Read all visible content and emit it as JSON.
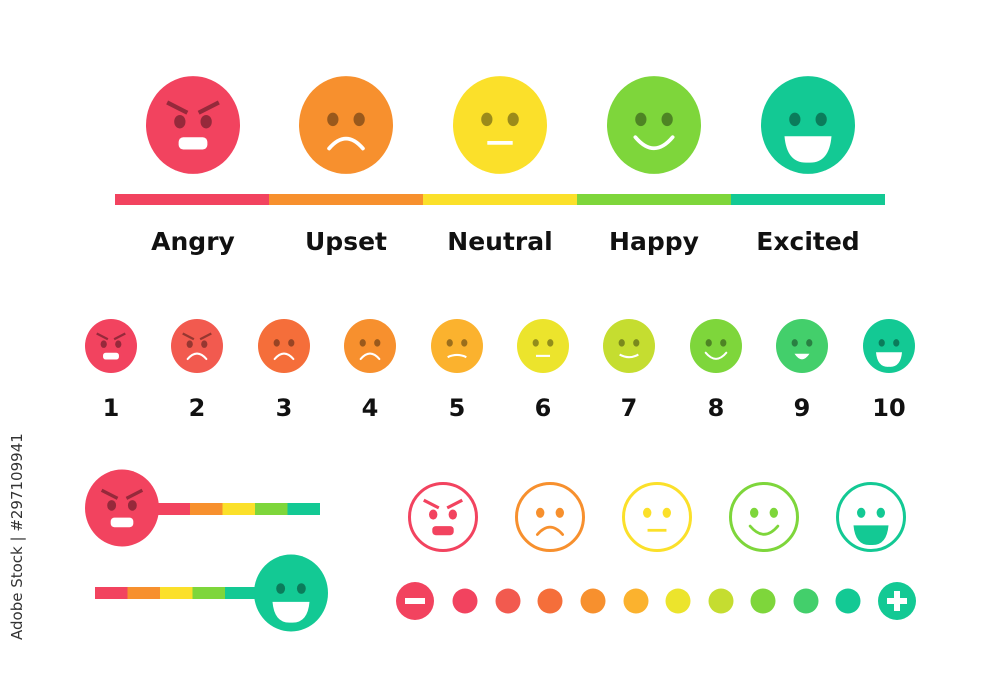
{
  "moods": [
    {
      "label": "Angry",
      "face": "angry",
      "color": "#f2435f"
    },
    {
      "label": "Upset",
      "face": "sad",
      "color": "#f7902e"
    },
    {
      "label": "Neutral",
      "face": "neutral",
      "color": "#fbe02a"
    },
    {
      "label": "Happy",
      "face": "smile",
      "color": "#7ed63b"
    },
    {
      "label": "Excited",
      "face": "grin",
      "color": "#13c994"
    }
  ],
  "scale": [
    {
      "label": "1",
      "face": "angry",
      "color": "#f2435f"
    },
    {
      "label": "2",
      "face": "angry-sad",
      "color": "#f25a4f"
    },
    {
      "label": "3",
      "face": "sad",
      "color": "#f56e3a"
    },
    {
      "label": "4",
      "face": "sad",
      "color": "#f7902e"
    },
    {
      "label": "5",
      "face": "slight-sad",
      "color": "#fbb22e"
    },
    {
      "label": "6",
      "face": "neutral",
      "color": "#ece42c"
    },
    {
      "label": "7",
      "face": "slight-smile",
      "color": "#c5dd30"
    },
    {
      "label": "8",
      "face": "smile",
      "color": "#7ed63b"
    },
    {
      "label": "9",
      "face": "small-grin",
      "color": "#43cf6b"
    },
    {
      "label": "10",
      "face": "grin",
      "color": "#13c994"
    }
  ],
  "sliders": [
    {
      "face": "angry",
      "level": "minimum"
    },
    {
      "face": "grin",
      "level": "maximum"
    }
  ],
  "dots": [
    "#f2435f",
    "#f25a4f",
    "#f56e3a",
    "#f7902e",
    "#fbb22e",
    "#ece42c",
    "#c5dd30",
    "#7ed63b",
    "#43cf6b",
    "#13c994"
  ],
  "minus_icon": "minus-circle-icon",
  "plus_icon": "plus-circle-icon",
  "watermark": "Adobe Stock | #297109941"
}
